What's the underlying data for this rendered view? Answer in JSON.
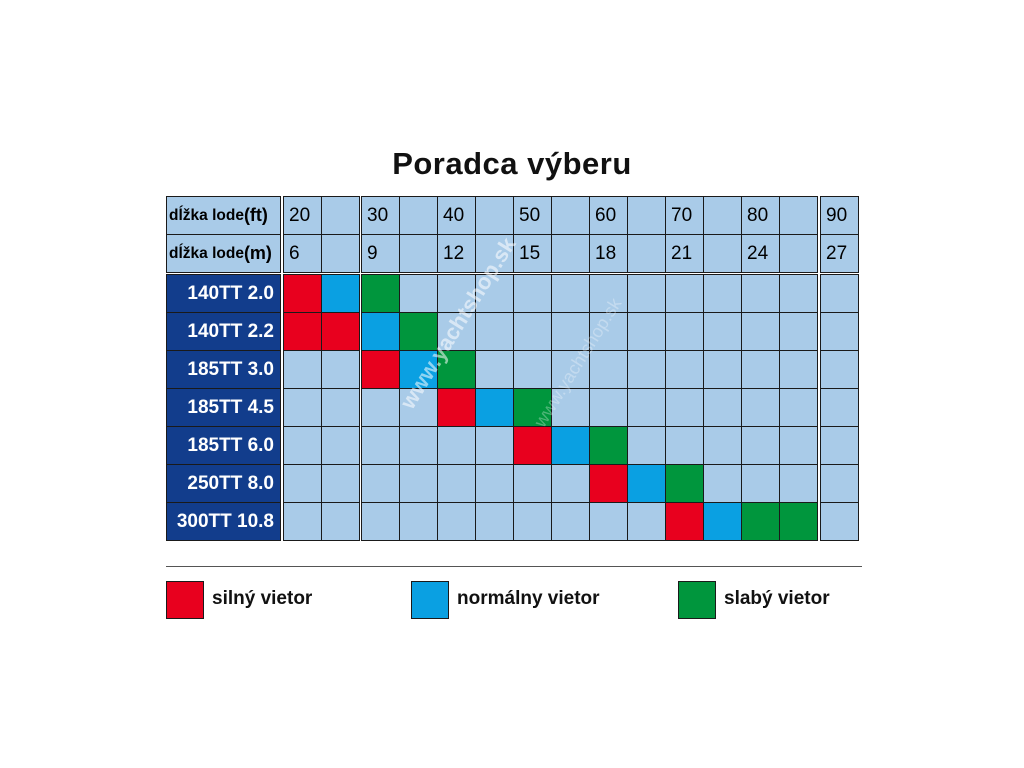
{
  "title": "Poradca výberu",
  "watermark": "www.yachtshop.sk",
  "colors": {
    "strong": "#e8001e",
    "normal": "#0aa0e2",
    "weak": "#00963d",
    "empty": "#a9cbe8",
    "rowlabel": "#123d8c"
  },
  "chart_data": {
    "type": "table",
    "title": "Poradca výberu",
    "header_rows": [
      {
        "label_prefix": "dĺžka lode ",
        "label_unit": "(ft)",
        "values": [
          "20",
          "",
          "30",
          "",
          "40",
          "",
          "50",
          "",
          "60",
          "",
          "70",
          "",
          "80",
          "",
          "90"
        ]
      },
      {
        "label_prefix": "dĺžka lode",
        "label_unit": "(m)",
        "values": [
          "6",
          "",
          "9",
          "",
          "12",
          "",
          "15",
          "",
          "18",
          "",
          "21",
          "",
          "24",
          "",
          "27"
        ]
      }
    ],
    "column_count": 15,
    "rows": [
      {
        "name": "140TT 2.0",
        "cells": [
          "strong",
          "normal",
          "weak",
          "",
          "",
          "",
          "",
          "",
          "",
          "",
          "",
          "",
          "",
          "",
          ""
        ]
      },
      {
        "name": "140TT 2.2",
        "cells": [
          "strong",
          "strong",
          "normal",
          "weak",
          "",
          "",
          "",
          "",
          "",
          "",
          "",
          "",
          "",
          "",
          ""
        ]
      },
      {
        "name": "185TT 3.0",
        "cells": [
          "",
          "",
          "strong",
          "normal",
          "weak",
          "",
          "",
          "",
          "",
          "",
          "",
          "",
          "",
          "",
          ""
        ]
      },
      {
        "name": "185TT 4.5",
        "cells": [
          "",
          "",
          "",
          "",
          "strong",
          "normal",
          "weak",
          "",
          "",
          "",
          "",
          "",
          "",
          "",
          ""
        ]
      },
      {
        "name": "185TT 6.0",
        "cells": [
          "",
          "",
          "",
          "",
          "",
          "",
          "strong",
          "normal",
          "weak",
          "",
          "",
          "",
          "",
          "",
          ""
        ]
      },
      {
        "name": "250TT 8.0",
        "cells": [
          "",
          "",
          "",
          "",
          "",
          "",
          "",
          "",
          "strong",
          "normal",
          "weak",
          "",
          "",
          "",
          ""
        ]
      },
      {
        "name": "300TT 10.8",
        "cells": [
          "",
          "",
          "",
          "",
          "",
          "",
          "",
          "",
          "",
          "",
          "strong",
          "normal",
          "weak",
          "weak",
          ""
        ]
      }
    ],
    "legend": [
      {
        "key": "strong",
        "label": "silný vietor"
      },
      {
        "key": "normal",
        "label": "normálny vietor"
      },
      {
        "key": "weak",
        "label": "slabý vietor"
      }
    ]
  }
}
